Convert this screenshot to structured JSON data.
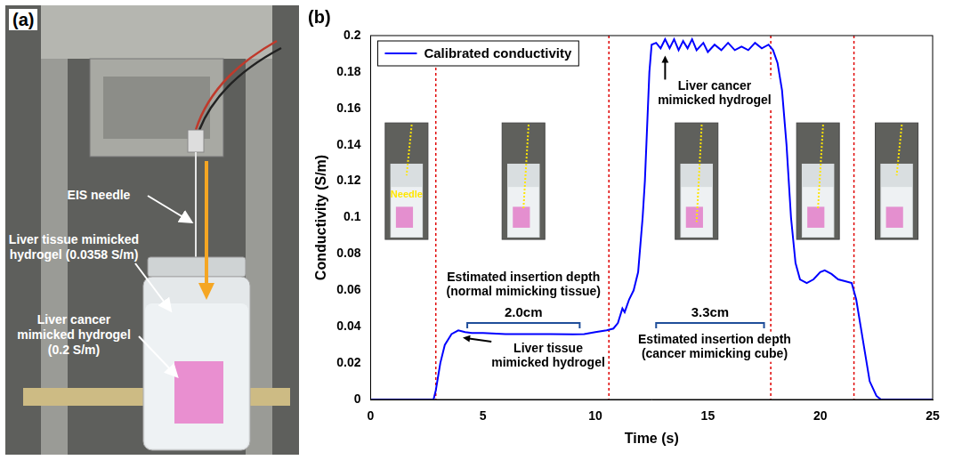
{
  "photo_panel": {
    "letter": "(a)",
    "labels": {
      "needle": "EIS needle",
      "normal": "Liver tissue mimicked hydrogel (0.0358 S/m)",
      "cancer": "Liver cancer mimicked hydrogel (0.2 S/m)"
    }
  },
  "chart_data": {
    "letter": "(b)",
    "type": "line",
    "x_label": "Time (s)",
    "y_label": "Conductivity (S/m)",
    "x": [
      0,
      2.8,
      2.9,
      3.1,
      3.3,
      3.6,
      3.9,
      4.2,
      4.5,
      5,
      6,
      7,
      8,
      9,
      9.5,
      10,
      10.5,
      10.8,
      11,
      11.2,
      11.3,
      11.5,
      11.7,
      11.9,
      12,
      12.1,
      12.2,
      12.3,
      12.4,
      12.5,
      12.7,
      12.9,
      13.1,
      13.3,
      13.5,
      13.7,
      13.9,
      14.1,
      14.3,
      14.5,
      14.8,
      15,
      15.3,
      15.6,
      15.9,
      16.2,
      16.5,
      16.8,
      17.1,
      17.4,
      17.7,
      17.9,
      18.1,
      18.3,
      18.5,
      18.7,
      18.9,
      19.1,
      19.4,
      19.7,
      20,
      20.2,
      20.5,
      20.8,
      21.1,
      21.4,
      21.6,
      21.8,
      22,
      22.2,
      22.5,
      22.7,
      25
    ],
    "series": [
      {
        "name": "Calibrated conductivity",
        "color": "#0000ff",
        "values": [
          0,
          0,
          0.005,
          0.02,
          0.03,
          0.036,
          0.038,
          0.037,
          0.0365,
          0.0365,
          0.036,
          0.036,
          0.036,
          0.0358,
          0.036,
          0.037,
          0.038,
          0.039,
          0.042,
          0.05,
          0.048,
          0.055,
          0.06,
          0.07,
          0.085,
          0.1,
          0.12,
          0.15,
          0.18,
          0.195,
          0.196,
          0.193,
          0.198,
          0.193,
          0.198,
          0.192,
          0.197,
          0.193,
          0.198,
          0.192,
          0.196,
          0.191,
          0.195,
          0.192,
          0.196,
          0.192,
          0.194,
          0.192,
          0.196,
          0.193,
          0.195,
          0.192,
          0.185,
          0.17,
          0.14,
          0.1,
          0.075,
          0.066,
          0.064,
          0.066,
          0.07,
          0.071,
          0.069,
          0.066,
          0.065,
          0.064,
          0.055,
          0.04,
          0.025,
          0.01,
          0.002,
          0,
          0
        ]
      }
    ],
    "xlim": [
      0,
      25
    ],
    "xticks": [
      0,
      5,
      10,
      15,
      20,
      25
    ],
    "ylim": [
      0,
      0.2
    ],
    "yticks": [
      0,
      0.02,
      0.04,
      0.06,
      0.08,
      0.1,
      0.12,
      0.14,
      0.16,
      0.18,
      0.2
    ],
    "grid": false,
    "legend": "upper left",
    "vlines": [
      2.9,
      10.6,
      17.8,
      21.5
    ],
    "brackets": [
      {
        "label": "2.0cm",
        "x": [
          4.3,
          9.3
        ],
        "y": 0.042
      },
      {
        "label": "3.3cm",
        "x": [
          12.7,
          17.5
        ],
        "y": 0.042
      }
    ],
    "annotations": [
      {
        "text": "Liver cancer mimicked hydrogel",
        "x": 15.3,
        "y": 0.168,
        "arrow_to": [
          13.1,
          0.189
        ]
      },
      {
        "text": "Liver tissue mimicked hydrogel",
        "x": 7.9,
        "y": 0.024,
        "arrow_to": [
          4.1,
          0.034
        ]
      },
      {
        "text": "Estimated insertion depth (normal mimicking tissue)",
        "x": 6.8,
        "y": 0.063
      },
      {
        "text": "Estimated insertion depth (cancer mimicking cube)",
        "x": 15.3,
        "y": 0.029
      }
    ],
    "insets": [
      {
        "x": 1.6,
        "label": "Needle"
      },
      {
        "x": 6.8
      },
      {
        "x": 14.5
      },
      {
        "x": 19.9
      },
      {
        "x": 23.4
      }
    ]
  }
}
